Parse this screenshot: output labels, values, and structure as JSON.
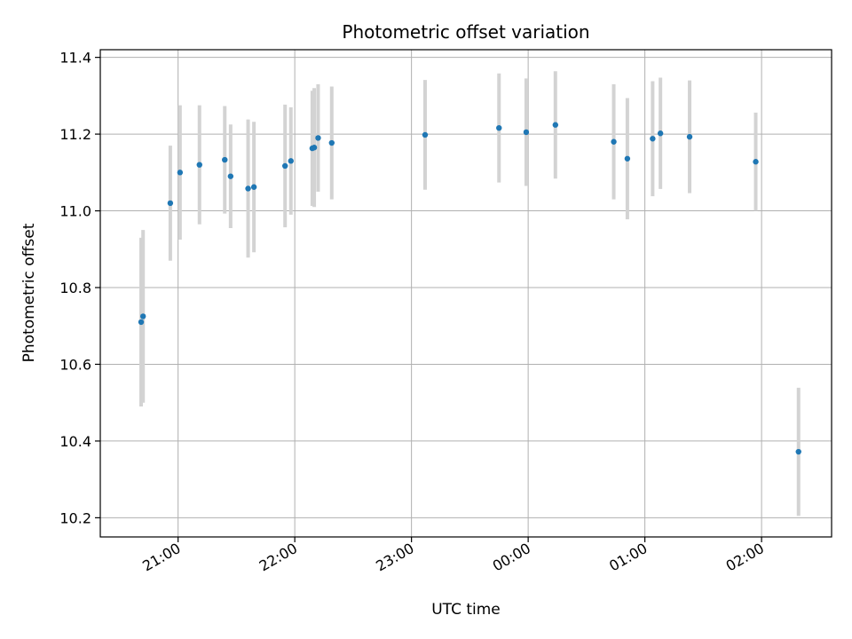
{
  "chart_data": {
    "type": "scatter",
    "title": "Photometric offset variation",
    "xlabel": "UTC time",
    "ylabel": "Photometric offset",
    "x_axis_type": "time",
    "x_range": [
      "20:20",
      "02:36"
    ],
    "ylim": [
      10.15,
      11.42
    ],
    "x_ticks": [
      "21:00",
      "22:00",
      "23:00",
      "00:00",
      "01:00",
      "02:00"
    ],
    "y_ticks": [
      10.2,
      10.4,
      10.6,
      10.8,
      11.0,
      11.2,
      11.4
    ],
    "grid": true,
    "colors": {
      "point": "#1f77b4",
      "errorbar": "#d3d3d3",
      "grid": "#b0b0b0"
    },
    "series": [
      {
        "points": [
          {
            "x": "20:41",
            "y": 10.71,
            "yerr": 0.22
          },
          {
            "x": "20:42",
            "y": 10.725,
            "yerr": 0.225
          },
          {
            "x": "20:56",
            "y": 11.02,
            "yerr": 0.15
          },
          {
            "x": "21:01",
            "y": 11.1,
            "yerr": 0.175
          },
          {
            "x": "21:11",
            "y": 11.12,
            "yerr": 0.155
          },
          {
            "x": "21:24",
            "y": 11.133,
            "yerr": 0.14
          },
          {
            "x": "21:27",
            "y": 11.09,
            "yerr": 0.135
          },
          {
            "x": "21:36",
            "y": 11.058,
            "yerr": 0.18
          },
          {
            "x": "21:39",
            "y": 11.062,
            "yerr": 0.17
          },
          {
            "x": "21:55",
            "y": 11.117,
            "yerr": 0.16
          },
          {
            "x": "21:58",
            "y": 11.13,
            "yerr": 0.14
          },
          {
            "x": "22:09",
            "y": 11.163,
            "yerr": 0.15
          },
          {
            "x": "22:10",
            "y": 11.165,
            "yerr": 0.155
          },
          {
            "x": "22:12",
            "y": 11.19,
            "yerr": 0.14
          },
          {
            "x": "22:19",
            "y": 11.177,
            "yerr": 0.147
          },
          {
            "x": "23:07",
            "y": 11.198,
            "yerr": 0.143
          },
          {
            "x": "23:45",
            "y": 11.216,
            "yerr": 0.142
          },
          {
            "x": "23:59",
            "y": 11.205,
            "yerr": 0.14
          },
          {
            "x": "00:14",
            "y": 11.224,
            "yerr": 0.14
          },
          {
            "x": "00:44",
            "y": 11.18,
            "yerr": 0.15
          },
          {
            "x": "00:51",
            "y": 11.136,
            "yerr": 0.158
          },
          {
            "x": "01:04",
            "y": 11.188,
            "yerr": 0.15
          },
          {
            "x": "01:08",
            "y": 11.202,
            "yerr": 0.145
          },
          {
            "x": "01:23",
            "y": 11.193,
            "yerr": 0.147
          },
          {
            "x": "01:57",
            "y": 11.128,
            "yerr": 0.128
          },
          {
            "x": "02:19",
            "y": 10.372,
            "yerr": 0.167
          }
        ]
      }
    ]
  }
}
